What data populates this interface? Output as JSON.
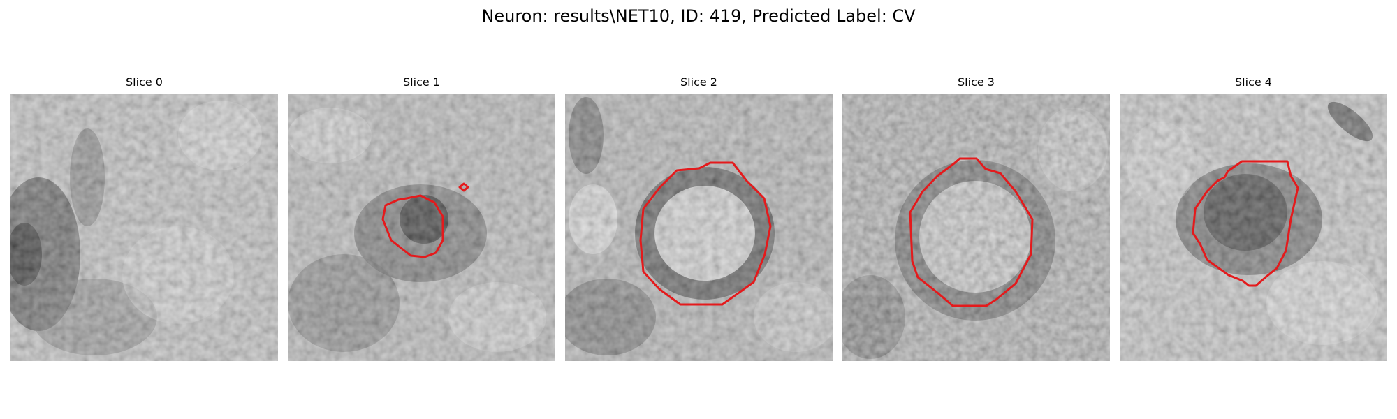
{
  "figure": {
    "title": "Neuron: results\\NET10, ID: 419, Predicted Label: CV"
  },
  "panels": [
    {
      "title": "Slice 0",
      "contour": false
    },
    {
      "title": "Slice 1",
      "contour": true
    },
    {
      "title": "Slice 2",
      "contour": true
    },
    {
      "title": "Slice 3",
      "contour": true
    },
    {
      "title": "Slice 4",
      "contour": true
    }
  ],
  "colors": {
    "contour": "#e41a1c",
    "background": "#ffffff"
  }
}
